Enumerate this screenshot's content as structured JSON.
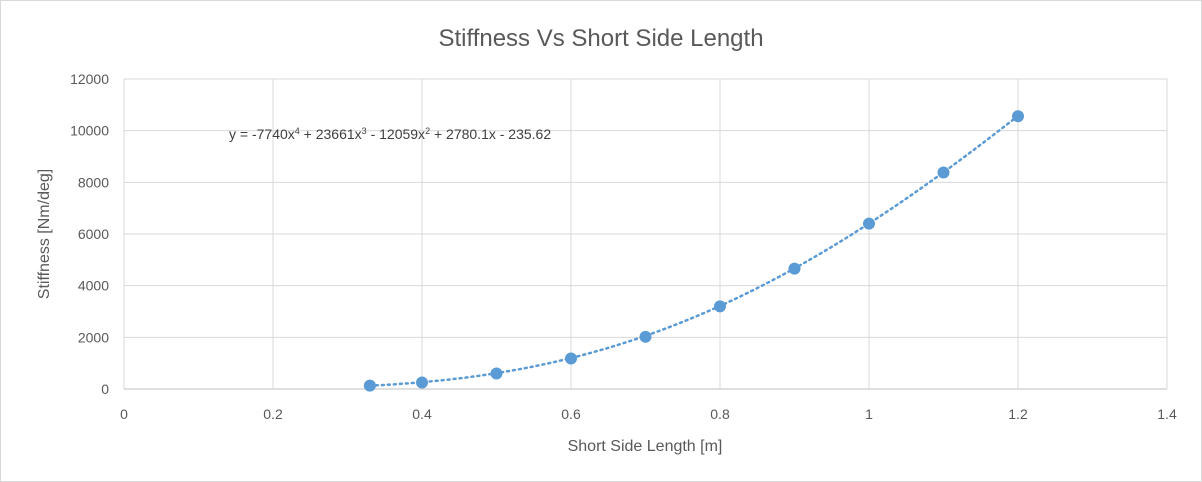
{
  "chart_data": {
    "type": "scatter",
    "title": "Stiffness Vs Short Side Length",
    "xlabel": "Short Side Length [m]",
    "ylabel": "Stiffness [Nm/deg]",
    "xlim": [
      0,
      1.4
    ],
    "ylim": [
      0,
      12000
    ],
    "x_ticks": [
      "0",
      "0.2",
      "0.4",
      "0.6",
      "0.8",
      "1",
      "1.2",
      "1.4"
    ],
    "y_ticks": [
      "0",
      "2000",
      "4000",
      "6000",
      "8000",
      "10000",
      "12000"
    ],
    "x_tick_values": [
      0,
      0.2,
      0.4,
      0.6,
      0.8,
      1.0,
      1.2,
      1.4
    ],
    "y_tick_values": [
      0,
      2000,
      4000,
      6000,
      8000,
      10000,
      12000
    ],
    "grid": true,
    "series": [
      {
        "x": [
          0.33,
          0.4,
          0.5,
          0.6,
          0.7,
          0.8,
          0.9,
          1.0,
          1.1,
          1.2
        ],
        "y": [
          130,
          250,
          600,
          1180,
          2020,
          3200,
          4660,
          6400,
          8380,
          10560
        ],
        "color": "#5b9bd5"
      }
    ],
    "trendline": {
      "type": "polynomial",
      "order": 4,
      "coefficients": [
        -7740,
        23661,
        -12059,
        2780.1,
        -235.62
      ],
      "equation_parts": [
        "y = -7740x",
        "4",
        " + 23661x",
        "3",
        " - 12059x",
        "2",
        " + 2780.1x - 235.62"
      ],
      "style": "dotted",
      "color": "#5b9bd5"
    }
  }
}
